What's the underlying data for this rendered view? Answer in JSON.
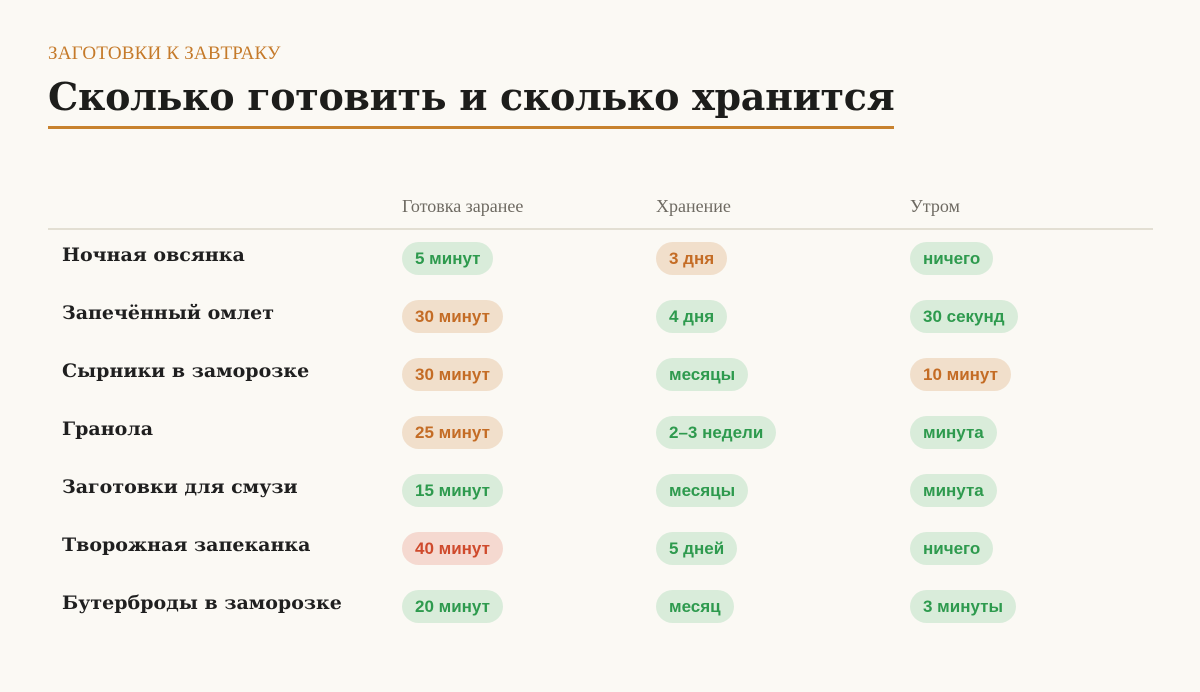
{
  "header": {
    "eyebrow": "ЗАГОТОВКИ К ЗАВТРАКУ",
    "title": "Сколько готовить и сколько хранится"
  },
  "table": {
    "columns": [
      "Готовка заранее",
      "Хранение",
      "Утром"
    ],
    "rows": [
      {
        "name": "Ночная овсянка",
        "cells": [
          {
            "text": "5 минут",
            "level": "good"
          },
          {
            "text": "3 дня",
            "level": "mid"
          },
          {
            "text": "ничего",
            "level": "good"
          }
        ]
      },
      {
        "name": "Запечённый омлет",
        "cells": [
          {
            "text": "30 минут",
            "level": "mid"
          },
          {
            "text": "4 дня",
            "level": "good"
          },
          {
            "text": "30 секунд",
            "level": "good"
          }
        ]
      },
      {
        "name": "Сырники в заморозке",
        "cells": [
          {
            "text": "30 минут",
            "level": "mid"
          },
          {
            "text": "месяцы",
            "level": "good"
          },
          {
            "text": "10 минут",
            "level": "mid"
          }
        ]
      },
      {
        "name": "Гранола",
        "cells": [
          {
            "text": "25 минут",
            "level": "mid"
          },
          {
            "text": "2–3 недели",
            "level": "good"
          },
          {
            "text": "минута",
            "level": "good"
          }
        ]
      },
      {
        "name": "Заготовки для смузи",
        "cells": [
          {
            "text": "15 минут",
            "level": "good"
          },
          {
            "text": "месяцы",
            "level": "good"
          },
          {
            "text": "минута",
            "level": "good"
          }
        ]
      },
      {
        "name": "Творожная запеканка",
        "cells": [
          {
            "text": "40 минут",
            "level": "bad"
          },
          {
            "text": "5 дней",
            "level": "good"
          },
          {
            "text": "ничего",
            "level": "good"
          }
        ]
      },
      {
        "name": "Бутерброды в заморозке",
        "cells": [
          {
            "text": "20 минут",
            "level": "good"
          },
          {
            "text": "месяц",
            "level": "good"
          },
          {
            "text": "3 минуты",
            "level": "good"
          }
        ]
      }
    ]
  },
  "colors": {
    "good_bg": "#d9ecda",
    "good_text": "#2e9a4e",
    "mid_bg": "#f1dfcb",
    "mid_text": "#c46c25",
    "bad_bg": "#f5d9d0",
    "bad_text": "#cf4a2c",
    "accent": "#c8822e"
  }
}
